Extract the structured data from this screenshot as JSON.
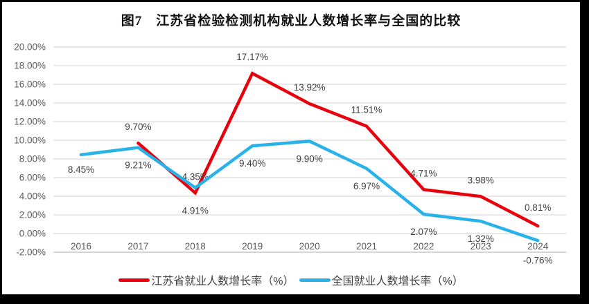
{
  "title": "图7　江苏省检验检测机构就业人数增长率与全国的比较",
  "chart_data": {
    "type": "line",
    "x_categories": [
      "2016",
      "2017",
      "2018",
      "2019",
      "2020",
      "2021",
      "2022",
      "2023",
      "2024"
    ],
    "y_axis": {
      "min": -2,
      "max": 20,
      "step": 2,
      "tick_labels": [
        "20.00%",
        "18.00%",
        "16.00%",
        "14.00%",
        "12.00%",
        "10.00%",
        "8.00%",
        "6.00%",
        "4.00%",
        "2.00%",
        "0.00%",
        "-2.00%"
      ]
    },
    "grid": true,
    "legend_position": "bottom",
    "colors": {
      "grid_line": "#d9d9d9",
      "axis_bottom_line": "#c9c9c9",
      "tick_text": "#595959",
      "data_label_text": "#404040"
    },
    "series": [
      {
        "name": "江苏省就业人数增长率（%）",
        "id": "jiangsu",
        "color": "#e8000d",
        "label_side": "above",
        "points": [
          {
            "x": "2017",
            "value": 9.7,
            "label": "9.70%"
          },
          {
            "x": "2018",
            "value": 4.35,
            "label": "4.35%"
          },
          {
            "x": "2019",
            "value": 17.17,
            "label": "17.17%"
          },
          {
            "x": "2020",
            "value": 13.92,
            "label": "13.92%"
          },
          {
            "x": "2021",
            "value": 11.51,
            "label": "11.51%"
          },
          {
            "x": "2022",
            "value": 4.71,
            "label": "4.71%"
          },
          {
            "x": "2023",
            "value": 3.98,
            "label": "3.98%"
          },
          {
            "x": "2024",
            "value": 0.81,
            "label": "0.81%"
          }
        ]
      },
      {
        "name": "全国就业人数增长率（%）",
        "id": "national",
        "color": "#29b2e8",
        "label_side": "below",
        "points": [
          {
            "x": "2016",
            "value": 8.45,
            "label": "8.45%"
          },
          {
            "x": "2017",
            "value": 9.21,
            "label": "9.21%"
          },
          {
            "x": "2018",
            "value": 4.91,
            "label": "4.91%"
          },
          {
            "x": "2019",
            "value": 9.4,
            "label": "9.40%"
          },
          {
            "x": "2020",
            "value": 9.9,
            "label": "9.90%"
          },
          {
            "x": "2021",
            "value": 6.97,
            "label": "6.97%"
          },
          {
            "x": "2022",
            "value": 2.07,
            "label": "2.07%"
          },
          {
            "x": "2023",
            "value": 1.32,
            "label": "1.32%"
          },
          {
            "x": "2024",
            "value": -0.76,
            "label": "-0.76%"
          }
        ]
      }
    ]
  }
}
